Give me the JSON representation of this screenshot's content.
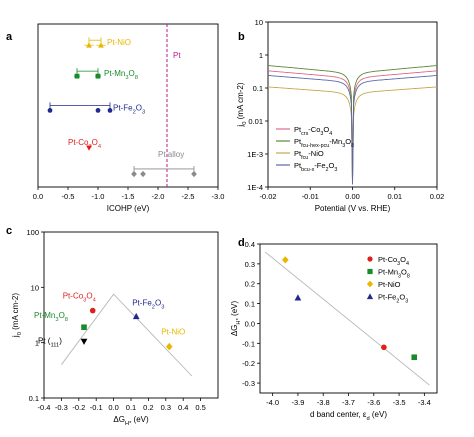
{
  "colors": {
    "pt_line": "#c0168f",
    "pt_nio": "#e6b800",
    "pt_mn3o8": "#1a8a2a",
    "pt_fe2o3": "#1f2a8c",
    "pt_co3o4": "#e01e1e",
    "pt_alloy": "#8a8a8a",
    "trend": "#b8b8b8",
    "curve_cocsc": "#e06a8a",
    "curve_mn": "#5a8a3a",
    "curve_nio": "#c8a84a",
    "curve_fe": "#5a68a8",
    "axis": "#000000"
  },
  "panels": {
    "a": {
      "label": "a"
    },
    "b": {
      "label": "b"
    },
    "c": {
      "label": "c"
    },
    "d": {
      "label": "d"
    }
  },
  "chart_data": [
    {
      "panel": "a",
      "type": "scatter",
      "xlabel": "ICOHP (eV)",
      "ylabel": "",
      "x_reversed": true,
      "xlim": [
        0.0,
        -3.0
      ],
      "xticks": [
        "0.0",
        "-0.5",
        "-1.0",
        "-1.5",
        "-2.0",
        "-2.5",
        "-3.0"
      ],
      "reference_line": {
        "label": "Pt",
        "x": -2.15
      },
      "series": [
        {
          "name": "Pt-NiO",
          "key": "pt_nio",
          "marker": "triangle",
          "level": 0.87,
          "points": [
            -0.85,
            -1.05
          ],
          "range": [
            -0.85,
            -1.05
          ],
          "error": 0.08
        },
        {
          "name": "Pt-Mn3O8",
          "key": "pt_mn3o8",
          "marker": "square",
          "level": 0.68,
          "points": [
            -0.65,
            -1.0
          ],
          "range": [
            -0.65,
            -1.0
          ],
          "error": 0.05
        },
        {
          "name": "Pt-Fe2O3",
          "key": "pt_fe2o3",
          "marker": "circle",
          "level": 0.47,
          "points": [
            -0.2,
            -1.0,
            -1.2
          ],
          "range": [
            -0.2,
            -1.2
          ],
          "error": 0.0
        },
        {
          "name": "Pt-Co3O4",
          "key": "pt_co3o4",
          "marker": "triangle-down",
          "level": 0.24,
          "points": [
            -0.85
          ],
          "range": null,
          "error": 0.0
        },
        {
          "name": "Pt alloy",
          "key": "pt_alloy",
          "marker": "diamond",
          "level": 0.08,
          "points": [
            -1.6,
            -1.75,
            -2.6
          ],
          "range": [
            -1.6,
            -2.6
          ],
          "error": 0.0
        }
      ]
    },
    {
      "panel": "b",
      "type": "line",
      "xlabel": "Potential (V vs. RHE)",
      "ylabel": "j0 (mA cm-2)",
      "yscale": "log",
      "xlim": [
        -0.02,
        0.02
      ],
      "ylim": [
        0.0001,
        10
      ],
      "xticks": [
        "-0.02",
        "-0.01",
        "0.00",
        "0.01",
        "0.02"
      ],
      "yticks": [
        "10",
        "1",
        "0.1",
        "0.01",
        "1E-3",
        "1E-4"
      ],
      "legend": [
        {
          "main": "Pt",
          "sub": "crs",
          "rest": "-Co",
          "sub2": "3",
          "rest2": "O",
          "sub3": "4",
          "key": "curve_cocsc"
        },
        {
          "main": "Pt",
          "sub": "fcu-hex-pcu",
          "rest": "-Mn",
          "sub2": "3",
          "rest2": "O",
          "sub3": "8",
          "key": "curve_mn"
        },
        {
          "main": "Pt",
          "sub": "fcu",
          "rest": "-NiO",
          "sub2": "",
          "rest2": "",
          "sub3": "",
          "key": "curve_nio"
        },
        {
          "main": "Pt",
          "sub": "bcu-x",
          "rest": "-Fe",
          "sub2": "2",
          "rest2": "O",
          "sub3": "3",
          "key": "curve_fe"
        }
      ],
      "series": [
        {
          "name": "Pt crs-Co3O4",
          "key": "curve_cocsc",
          "j0": 0.2,
          "slope": 28
        },
        {
          "name": "Pt fcu-hex-pcu-Mn3O8",
          "key": "curve_mn",
          "j0": 0.28,
          "slope": 30
        },
        {
          "name": "Pt fcu-NiO",
          "key": "curve_nio",
          "j0": 0.07,
          "slope": 24
        },
        {
          "name": "Pt bcu-x-Fe2O3",
          "key": "curve_fe",
          "j0": 0.15,
          "slope": 26
        }
      ]
    },
    {
      "panel": "c",
      "type": "scatter",
      "xlabel": "ΔGH* (eV)",
      "ylabel": "j0 (mA cm-2)",
      "yscale": "log",
      "xlim": [
        -0.4,
        0.6
      ],
      "ylim": [
        0.1,
        100
      ],
      "xticks": [
        "-0.4",
        "-0.3",
        "-0.2",
        "-0.1",
        "0.0",
        "0.1",
        "0.2",
        "0.3",
        "0.4",
        "0.5"
      ],
      "yticks": [
        "100",
        "10",
        "1",
        "0.1"
      ],
      "volcano": [
        [
          -0.3,
          0.4
        ],
        [
          0.0,
          7.5
        ],
        [
          0.45,
          0.25
        ]
      ],
      "points": [
        {
          "name": "Pt-Co3O4",
          "key": "pt_co3o4",
          "marker": "circle",
          "x": -0.12,
          "y": 3.8
        },
        {
          "name": "Pt-Mn3O8",
          "key": "pt_mn3o8",
          "marker": "square",
          "x": -0.17,
          "y": 1.9
        },
        {
          "name": "Pt (111)",
          "key": "axis",
          "marker": "triangle-down",
          "x": -0.17,
          "y": 1.05
        },
        {
          "name": "Pt-Fe2O3",
          "key": "pt_fe2o3",
          "marker": "triangle",
          "x": 0.13,
          "y": 3.0
        },
        {
          "name": "Pt-NiO",
          "key": "pt_nio",
          "marker": "diamond",
          "x": 0.32,
          "y": 0.85
        }
      ]
    },
    {
      "panel": "d",
      "type": "scatter",
      "xlabel": "d band center, εd (eV)",
      "ylabel": "ΔGH* (eV)",
      "x_reversed": true,
      "xlim": [
        -4.05,
        -3.35
      ],
      "ylim": [
        -0.35,
        0.4
      ],
      "xticks": [
        "-4.0",
        "-3.9",
        "-3.8",
        "-3.7",
        "-3.6",
        "-3.5",
        "-3.4"
      ],
      "yticks": [
        "0.4",
        "0.3",
        "0.2",
        "0.1",
        "0.0",
        "-0.1",
        "-0.2",
        "-0.3"
      ],
      "trendline": [
        [
          -4.03,
          0.36
        ],
        [
          -3.38,
          -0.31
        ]
      ],
      "legend_position": "top-right",
      "points": [
        {
          "name": "Pt-Co3O4",
          "key": "pt_co3o4",
          "marker": "circle",
          "x": -3.56,
          "y": -0.12
        },
        {
          "name": "Pt-Mn3O8",
          "key": "pt_mn3o8",
          "marker": "square",
          "x": -3.44,
          "y": -0.17
        },
        {
          "name": "Pt-NiO",
          "key": "pt_nio",
          "marker": "diamond",
          "x": -3.95,
          "y": 0.32
        },
        {
          "name": "Pt-Fe2O3",
          "key": "pt_fe2o3",
          "marker": "triangle",
          "x": -3.9,
          "y": 0.13
        }
      ]
    }
  ]
}
